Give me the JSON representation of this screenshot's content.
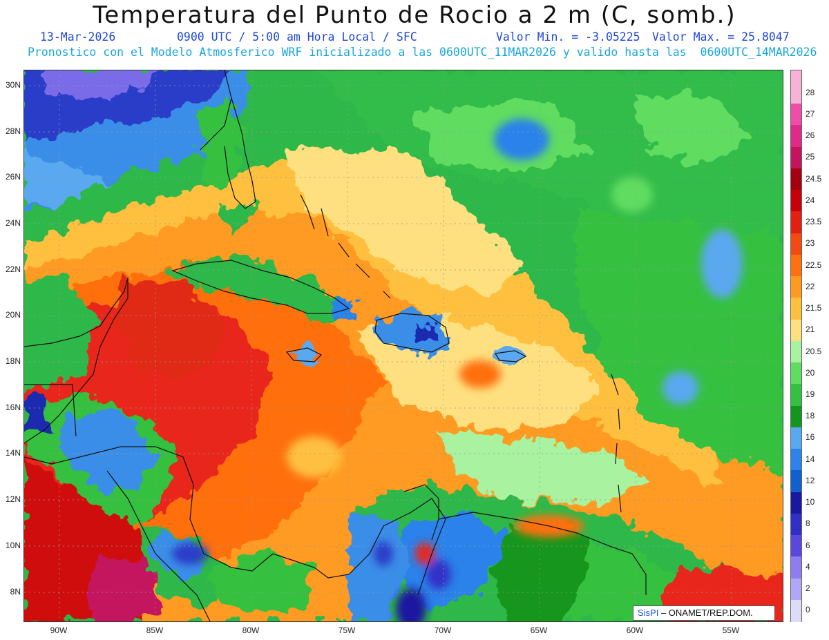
{
  "header": {
    "title": "Temperatura del Punto de Rocio a 2 m (C, somb.)",
    "date": "13-Mar-2026",
    "time": "0900 UTC / 5:00 am Hora Local / SFC",
    "min": "Valor Min. = -3.05225",
    "max": "Valor Max. = 25.8047",
    "forecast": "Pronostico con el Modelo Atmosferico WRF inicializado a las 0600UTC_11MAR2026 y valido hasta las  0600UTC_14MAR2026"
  },
  "lat_labels": [
    "30N",
    "28N",
    "26N",
    "24N",
    "22N",
    "20N",
    "18N",
    "16N",
    "14N",
    "12N",
    "10N",
    "8N"
  ],
  "lon_labels": [
    "90W",
    "85W",
    "80W",
    "75W",
    "70W",
    "65W",
    "60W",
    "55W"
  ],
  "colorbar": {
    "labels": [
      "28",
      "27",
      "26",
      "25",
      "24.5",
      "24",
      "23.5",
      "23",
      "22.5",
      "22",
      "21.5",
      "21",
      "20.5",
      "20",
      "19",
      "18",
      "16",
      "14",
      "12",
      "10",
      "8",
      "6",
      "4",
      "2",
      "0"
    ],
    "colors": [
      "#f7b3d6",
      "#ee4ea8",
      "#e02a8a",
      "#c4145e",
      "#a40010",
      "#c8000a",
      "#e22010",
      "#f24a10",
      "#ff7010",
      "#ff9a20",
      "#ffc040",
      "#ffe080",
      "#a8f2a0",
      "#60dc60",
      "#34c040",
      "#12961e",
      "#5aa8f0",
      "#2e82ea",
      "#1260d0",
      "#1a18a0",
      "#3030c8",
      "#5a48dc",
      "#8e7cf0",
      "#b0a8f6",
      "#dcdcf8"
    ],
    "top_color": "#f7b3d6"
  },
  "colors": {
    "ocean_base": "#2eb84a",
    "warm_core": "#e8281a",
    "dry_land": "#2a52e0"
  },
  "credit": {
    "brand": "SisPI",
    "org": "– ONAMET/REP.DOM."
  }
}
